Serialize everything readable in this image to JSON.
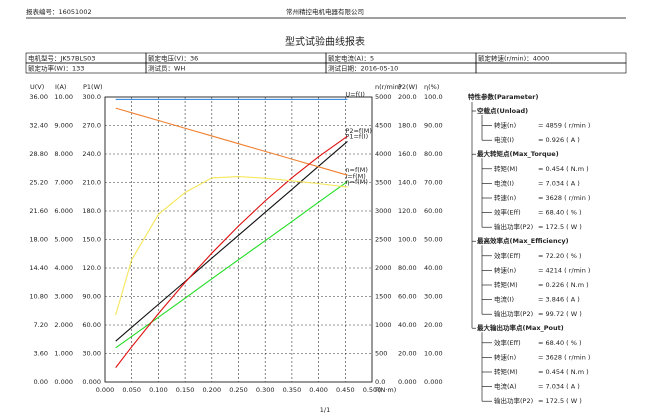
{
  "header": {
    "report_no": "报表编号：16051002",
    "company": "常州精控电机电器有限公司",
    "title": "型式试验曲线报表"
  },
  "table": {
    "rows": [
      [
        "电机型号：JK57BLS03",
        "额定电压(V)：36",
        "额定电流(A)：5",
        "额定转速(r/min)：4000"
      ],
      [
        "额定功率(W)：133",
        "测试员：WH",
        "测试日期：2016-05-10"
      ]
    ]
  },
  "chart_data": {
    "type": "line",
    "x_label": "T(N·m)",
    "grid": true,
    "x": [
      0.02,
      0.05,
      0.1,
      0.15,
      0.2,
      0.25,
      0.3,
      0.35,
      0.4,
      0.454
    ],
    "xlim": [
      0,
      0.5
    ],
    "xticks": [
      {
        "value": 0,
        "label": "0.000"
      },
      {
        "value": 0.05,
        "label": "0.050"
      },
      {
        "value": 0.1,
        "label": "0.100"
      },
      {
        "value": 0.15,
        "label": "0.150"
      },
      {
        "value": 0.2,
        "label": "0.200"
      },
      {
        "value": 0.25,
        "label": "0.250"
      },
      {
        "value": 0.3,
        "label": "0.300"
      },
      {
        "value": 0.35,
        "label": "0.350"
      },
      {
        "value": 0.4,
        "label": "0.400"
      },
      {
        "value": 0.45,
        "label": "0.450"
      },
      {
        "value": 0.5,
        "label": "0.500"
      }
    ],
    "axes": [
      {
        "label": "U(V)",
        "side": "left",
        "color": "#1e7fe0",
        "lim": [
          0,
          36
        ],
        "ticks": [
          {
            "value": 0,
            "label": "0.00"
          },
          {
            "value": 3.6,
            "label": "3.60"
          },
          {
            "value": 7.2,
            "label": "7.20"
          },
          {
            "value": 10.8,
            "label": "10.80"
          },
          {
            "value": 14.4,
            "label": "14.40"
          },
          {
            "value": 18,
            "label": "18.00"
          },
          {
            "value": 21.6,
            "label": "21.60"
          },
          {
            "value": 25.2,
            "label": "25.20"
          },
          {
            "value": 28.8,
            "label": "28.80"
          },
          {
            "value": 32.4,
            "label": "32.40"
          },
          {
            "value": 36,
            "label": "36.00"
          }
        ],
        "series": [
          {
            "name": "U=f(I)",
            "color": "#1e7fe0",
            "values": [
              35.7,
              35.7,
              35.7,
              35.7,
              35.7,
              35.7,
              35.7,
              35.7,
              35.7,
              35.7
            ]
          }
        ]
      },
      {
        "label": "I(A)",
        "side": "left",
        "color": "#22c022",
        "lim": [
          0,
          10
        ],
        "ticks": [
          {
            "value": 0,
            "label": "0.000"
          },
          {
            "value": 1,
            "label": "1.000"
          },
          {
            "value": 2,
            "label": "2.000"
          },
          {
            "value": 3,
            "label": "3.000"
          },
          {
            "value": 4,
            "label": "4.000"
          },
          {
            "value": 5,
            "label": "5.000"
          },
          {
            "value": 6,
            "label": "6.000"
          },
          {
            "value": 7,
            "label": "7.000"
          },
          {
            "value": 8,
            "label": "8.000"
          },
          {
            "value": 9,
            "label": "9.000"
          },
          {
            "value": 10,
            "label": "10.00"
          }
        ],
        "series": [
          {
            "name": "I=f(M)",
            "color": "#22dd22",
            "values": [
              1.2,
              1.6,
              2.27,
              2.94,
              3.62,
              4.29,
              4.96,
              5.63,
              6.31,
              7.034
            ]
          }
        ]
      },
      {
        "label": "P1(W)",
        "side": "left",
        "color": "#222222",
        "lim": [
          0,
          300
        ],
        "ticks": [
          {
            "value": 0,
            "label": "0.000"
          },
          {
            "value": 30,
            "label": "30.00"
          },
          {
            "value": 60,
            "label": "60.00"
          },
          {
            "value": 90,
            "label": "90.00"
          },
          {
            "value": 120,
            "label": "120.0"
          },
          {
            "value": 150,
            "label": "150.0"
          },
          {
            "value": 180,
            "label": "180.0"
          },
          {
            "value": 210,
            "label": "210.0"
          },
          {
            "value": 240,
            "label": "240.0"
          },
          {
            "value": 270,
            "label": "270.0"
          },
          {
            "value": 300,
            "label": "300.0"
          }
        ],
        "series": [
          {
            "name": "P1=f(I)",
            "color": "#111111",
            "values": [
              43,
              57.6,
              81.7,
              105.8,
              130.3,
              154.4,
              178.6,
              202.7,
              227.2,
              253.2
            ]
          }
        ]
      },
      {
        "label": "n(r/min)",
        "side": "right",
        "color": "#e03020",
        "lim": [
          0,
          5000
        ],
        "ticks": [
          {
            "value": 0,
            "label": "0.0"
          },
          500,
          1000,
          1500,
          2000,
          2500,
          3000,
          3500,
          4000,
          4500,
          5000
        ],
        "series": [
          {
            "name": "n=f(M)",
            "color": "#f08030",
            "values": [
              4805,
              4723,
              4588,
              4452,
              4317,
              4181,
              4046,
              3910,
              3775,
              3628
            ]
          }
        ]
      },
      {
        "label": "P2(W)",
        "side": "right",
        "color": "#e01010",
        "lim": [
          0,
          200
        ],
        "ticks": [
          {
            "value": 0,
            "label": "0.000"
          },
          {
            "value": 20,
            "label": "20.00"
          },
          {
            "value": 40,
            "label": "40.00"
          },
          {
            "value": 60,
            "label": "60.00"
          },
          {
            "value": 80,
            "label": "80.00"
          },
          {
            "value": 100,
            "label": "100.0"
          },
          {
            "value": 120,
            "label": "120.0"
          },
          {
            "value": 140,
            "label": "140.0"
          },
          {
            "value": 160,
            "label": "160.0"
          },
          {
            "value": 180,
            "label": "180.0"
          },
          {
            "value": 200,
            "label": "200.0"
          }
        ],
        "series": [
          {
            "name": "P2=f(M)",
            "color": "#e01010",
            "values": [
              10.1,
              24.7,
              48,
              69.9,
              90.4,
              109.5,
              127.1,
              143.3,
              158.1,
              172.5
            ]
          }
        ]
      },
      {
        "label": "η(%)",
        "side": "right",
        "color": "#f3ec9a",
        "lim": [
          0,
          100
        ],
        "ticks": [
          {
            "value": 0,
            "label": "0.000"
          },
          {
            "value": 10,
            "label": "10.00"
          },
          {
            "value": 20,
            "label": "20.00"
          },
          {
            "value": 30,
            "label": "30.00"
          },
          {
            "value": 40,
            "label": "40.00"
          },
          {
            "value": 50,
            "label": "50.00"
          },
          {
            "value": 60,
            "label": "60.00"
          },
          {
            "value": 70,
            "label": "70.00"
          },
          {
            "value": 80,
            "label": "80.00"
          },
          {
            "value": 90,
            "label": "90.00"
          },
          {
            "value": 100,
            "label": "100.0"
          }
        ],
        "series": [
          {
            "name": "η=f(M)",
            "color": "#f5e65a",
            "values": [
              23.5,
              42.9,
              58.8,
              66.5,
              71.6,
              72.1,
              71.5,
              70.6,
              69.6,
              68.4
            ]
          }
        ]
      }
    ]
  },
  "parameters": {
    "title": "特性参数(Parameter)",
    "groups": [
      {
        "name": "空载点(Unload)",
        "items": [
          {
            "label": "转速(n)",
            "value": "= 4859 ( r/min )"
          },
          {
            "label": "电流(I)",
            "value": "= 0.926 ( A )"
          }
        ]
      },
      {
        "name": "最大转矩点(Max_Torque)",
        "items": [
          {
            "label": "转矩(M)",
            "value": "= 0.454 ( N.m )"
          },
          {
            "label": "电流(I)",
            "value": "= 7.034 ( A )"
          },
          {
            "label": "转速(n)",
            "value": "= 3628 ( r/min )"
          },
          {
            "label": "效率(Eff)",
            "value": "= 68.40 ( % )"
          },
          {
            "label": "输出功率(P2)",
            "value": "= 172.5 ( W )"
          }
        ]
      },
      {
        "name": "最高效率点(Max_Efficiency)",
        "items": [
          {
            "label": "效率(Eff)",
            "value": "= 72.20 ( % )"
          },
          {
            "label": "转速(n)",
            "value": "= 4214 ( r/min )"
          },
          {
            "label": "转矩(M)",
            "value": "= 0.226 ( N.m )"
          },
          {
            "label": "电流(I)",
            "value": "= 3.846 ( A )"
          },
          {
            "label": "输出功率(P2)",
            "value": "= 99.72 ( W )"
          }
        ]
      },
      {
        "name": "最大输出功率点(Max_Pout)",
        "items": [
          {
            "label": "效率(Eff)",
            "value": "= 68.40 ( % )"
          },
          {
            "label": "转速(n)",
            "value": "= 3628 ( r/min )"
          },
          {
            "label": "转矩(M)",
            "value": "= 0.454 ( N.m )"
          },
          {
            "label": "电流(A)",
            "value": "= 7.034 ( A )"
          },
          {
            "label": "输出功率(P2)",
            "value": "= 172.5 ( W )"
          }
        ]
      }
    ]
  },
  "footer": "1/1"
}
